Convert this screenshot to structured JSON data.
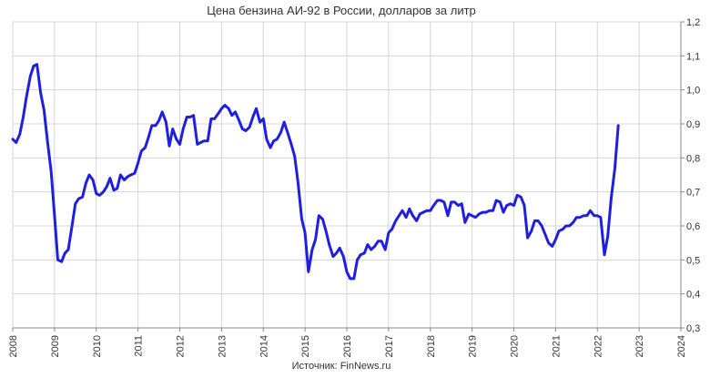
{
  "chart_data": {
    "type": "line",
    "title": "Цена бензина АИ-92 в России, долларов за литр",
    "source": "Источник: FinNews.ru",
    "xlabel": "",
    "ylabel": "",
    "xlim": [
      2008,
      2024
    ],
    "ylim": [
      0.3,
      1.2
    ],
    "x_ticks": [
      "2008",
      "2009",
      "2010",
      "2011",
      "2012",
      "2013",
      "2014",
      "2015",
      "2016",
      "2017",
      "2018",
      "2019",
      "2020",
      "2021",
      "2022",
      "2023",
      "2024"
    ],
    "y_ticks": [
      "0,3",
      "0,4",
      "0,5",
      "0,6",
      "0,7",
      "0,8",
      "0,9",
      "1,0",
      "1,1",
      "1,2"
    ],
    "y_axis_side": "right",
    "grid": true,
    "legend": "none",
    "line_color": "#1f1fe0",
    "grid_color": "#d4d4d4",
    "series": [
      {
        "x": [
          2008.0,
          2008.08,
          2008.17,
          2008.25,
          2008.33,
          2008.42,
          2008.5,
          2008.58,
          2008.67,
          2008.75,
          2008.83,
          2008.92,
          2009.0,
          2009.08,
          2009.17,
          2009.25,
          2009.33,
          2009.42,
          2009.5,
          2009.58,
          2009.67,
          2009.75,
          2009.83,
          2009.92,
          2010.0,
          2010.08,
          2010.17,
          2010.25,
          2010.33,
          2010.42,
          2010.5,
          2010.58,
          2010.67,
          2010.75,
          2010.83,
          2010.92,
          2011.0,
          2011.08,
          2011.17,
          2011.25,
          2011.33,
          2011.42,
          2011.5,
          2011.58,
          2011.67,
          2011.75,
          2011.83,
          2011.92,
          2012.0,
          2012.08,
          2012.17,
          2012.25,
          2012.33,
          2012.42,
          2012.5,
          2012.58,
          2012.67,
          2012.75,
          2012.83,
          2012.92,
          2013.0,
          2013.08,
          2013.17,
          2013.25,
          2013.33,
          2013.42,
          2013.5,
          2013.58,
          2013.67,
          2013.75,
          2013.83,
          2013.92,
          2014.0,
          2014.08,
          2014.17,
          2014.25,
          2014.33,
          2014.42,
          2014.5,
          2014.58,
          2014.67,
          2014.75,
          2014.83,
          2014.92,
          2015.0,
          2015.08,
          2015.17,
          2015.25,
          2015.33,
          2015.42,
          2015.5,
          2015.58,
          2015.67,
          2015.75,
          2015.83,
          2015.92,
          2016.0,
          2016.08,
          2016.17,
          2016.25,
          2016.33,
          2016.42,
          2016.5,
          2016.58,
          2016.67,
          2016.75,
          2016.83,
          2016.92,
          2017.0,
          2017.08,
          2017.17,
          2017.25,
          2017.33,
          2017.42,
          2017.5,
          2017.58,
          2017.67,
          2017.75,
          2017.83,
          2017.92,
          2018.0,
          2018.08,
          2018.17,
          2018.25,
          2018.33,
          2018.42,
          2018.5,
          2018.58,
          2018.67,
          2018.75,
          2018.83,
          2018.92,
          2019.0,
          2019.08,
          2019.17,
          2019.25,
          2019.33,
          2019.42,
          2019.5,
          2019.58,
          2019.67,
          2019.75,
          2019.83,
          2019.92,
          2020.0,
          2020.08,
          2020.17,
          2020.25,
          2020.33,
          2020.42,
          2020.5,
          2020.58,
          2020.67,
          2020.75,
          2020.83,
          2020.92,
          2021.0,
          2021.08,
          2021.17,
          2021.25,
          2021.33,
          2021.42,
          2021.5,
          2021.58,
          2021.67,
          2021.75,
          2021.83,
          2021.92,
          2022.0,
          2022.08,
          2022.17,
          2022.25,
          2022.33,
          2022.42,
          2022.5
        ],
        "values": [
          0.855,
          0.845,
          0.87,
          0.92,
          0.98,
          1.04,
          1.07,
          1.075,
          0.99,
          0.94,
          0.85,
          0.76,
          0.63,
          0.5,
          0.495,
          0.52,
          0.53,
          0.6,
          0.665,
          0.68,
          0.685,
          0.725,
          0.75,
          0.735,
          0.695,
          0.69,
          0.7,
          0.715,
          0.74,
          0.705,
          0.71,
          0.75,
          0.735,
          0.745,
          0.75,
          0.755,
          0.785,
          0.82,
          0.83,
          0.86,
          0.895,
          0.895,
          0.91,
          0.935,
          0.905,
          0.835,
          0.885,
          0.855,
          0.84,
          0.885,
          0.92,
          0.92,
          0.925,
          0.84,
          0.845,
          0.85,
          0.85,
          0.915,
          0.915,
          0.93,
          0.945,
          0.955,
          0.945,
          0.925,
          0.935,
          0.91,
          0.885,
          0.88,
          0.89,
          0.92,
          0.945,
          0.905,
          0.915,
          0.855,
          0.83,
          0.85,
          0.855,
          0.875,
          0.905,
          0.875,
          0.84,
          0.805,
          0.73,
          0.62,
          0.58,
          0.465,
          0.53,
          0.56,
          0.63,
          0.62,
          0.585,
          0.545,
          0.51,
          0.52,
          0.535,
          0.51,
          0.465,
          0.445,
          0.445,
          0.5,
          0.515,
          0.52,
          0.545,
          0.53,
          0.54,
          0.555,
          0.555,
          0.53,
          0.58,
          0.59,
          0.615,
          0.63,
          0.645,
          0.625,
          0.65,
          0.63,
          0.615,
          0.635,
          0.64,
          0.645,
          0.645,
          0.66,
          0.675,
          0.675,
          0.67,
          0.63,
          0.67,
          0.67,
          0.66,
          0.665,
          0.61,
          0.635,
          0.63,
          0.625,
          0.635,
          0.64,
          0.64,
          0.645,
          0.645,
          0.675,
          0.67,
          0.64,
          0.66,
          0.665,
          0.66,
          0.69,
          0.685,
          0.66,
          0.565,
          0.585,
          0.615,
          0.615,
          0.6,
          0.575,
          0.55,
          0.54,
          0.56,
          0.585,
          0.59,
          0.6,
          0.6,
          0.61,
          0.625,
          0.625,
          0.63,
          0.63,
          0.645,
          0.63,
          0.63,
          0.625,
          0.515,
          0.57,
          0.68,
          0.77,
          0.895
        ]
      }
    ]
  }
}
